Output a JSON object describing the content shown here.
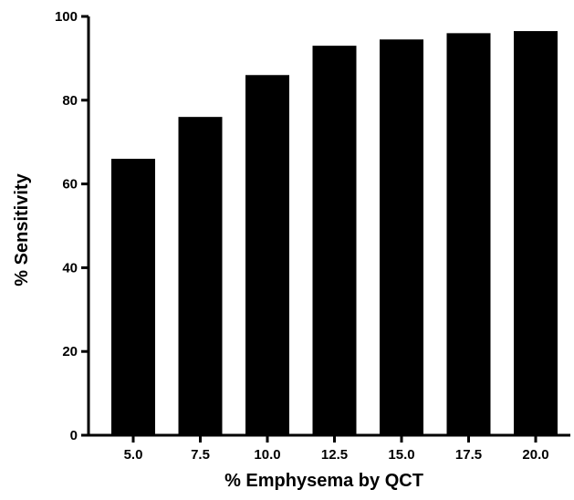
{
  "chart_data": {
    "type": "bar",
    "xlabel": "% Emphysema by QCT",
    "ylabel": "% Sensitivity",
    "categories": [
      "5.0",
      "7.5",
      "10.0",
      "12.5",
      "15.0",
      "17.5",
      "20.0"
    ],
    "values": [
      66,
      76,
      86,
      93,
      94.5,
      96,
      96.5
    ],
    "ylim": [
      0,
      100
    ],
    "yticks": [
      "0",
      "20",
      "40",
      "60",
      "80",
      "100"
    ],
    "bar_color": "#000000",
    "grid": false,
    "legend": "none"
  }
}
